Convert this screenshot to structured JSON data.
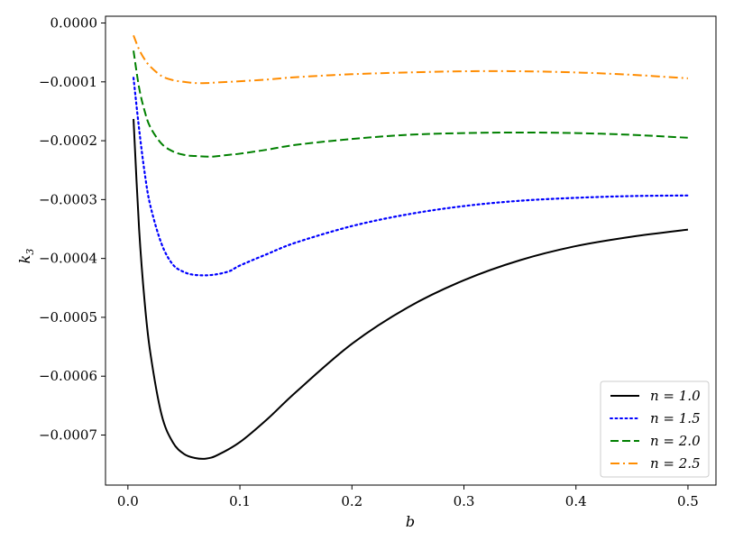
{
  "chart_data": {
    "type": "line",
    "xlabel": "b",
    "ylabel_main": "k",
    "ylabel_sub": "3",
    "xlim": [
      -0.02,
      0.525
    ],
    "ylim": [
      -0.000785,
      1.15e-05
    ],
    "xticks": [
      0.0,
      0.1,
      0.2,
      0.3,
      0.4,
      0.5
    ],
    "xtick_labels": [
      "0.0",
      "0.1",
      "0.2",
      "0.3",
      "0.4",
      "0.5"
    ],
    "yticks": [
      0.0,
      -0.0001,
      -0.0002,
      -0.0003,
      -0.0004,
      -0.0005,
      -0.0006,
      -0.0007
    ],
    "ytick_labels": [
      "0.0000",
      "−0.0001",
      "−0.0002",
      "−0.0003",
      "−0.0004",
      "−0.0005",
      "−0.0006",
      "−0.0007"
    ],
    "grid": false,
    "legend_position": "lower-right",
    "series": [
      {
        "name": "n = 1.0",
        "color": "#000000",
        "style": "solid",
        "points": [
          [
            0.005,
            -0.000163
          ],
          [
            0.01,
            -0.00035
          ],
          [
            0.015,
            -0.000475
          ],
          [
            0.02,
            -0.00056
          ],
          [
            0.03,
            -0.000665
          ],
          [
            0.04,
            -0.000712
          ],
          [
            0.05,
            -0.000732
          ],
          [
            0.06,
            -0.000739
          ],
          [
            0.07,
            -0.00074
          ],
          [
            0.08,
            -0.000734
          ],
          [
            0.1,
            -0.000712
          ],
          [
            0.125,
            -0.000672
          ],
          [
            0.15,
            -0.000627
          ],
          [
            0.2,
            -0.000545
          ],
          [
            0.25,
            -0.000483
          ],
          [
            0.3,
            -0.000437
          ],
          [
            0.35,
            -0.000403
          ],
          [
            0.4,
            -0.000379
          ],
          [
            0.45,
            -0.000363
          ],
          [
            0.5,
            -0.000351
          ]
        ]
      },
      {
        "name": "n = 1.5",
        "color": "#0000ff",
        "style": "dotted",
        "points": [
          [
            0.005,
            -9.3e-05
          ],
          [
            0.01,
            -0.00018
          ],
          [
            0.015,
            -0.000255
          ],
          [
            0.02,
            -0.00031
          ],
          [
            0.03,
            -0.000375
          ],
          [
            0.04,
            -0.00041
          ],
          [
            0.05,
            -0.000423
          ],
          [
            0.06,
            -0.000428
          ],
          [
            0.075,
            -0.000428
          ],
          [
            0.09,
            -0.000422
          ],
          [
            0.1,
            -0.000412
          ],
          [
            0.125,
            -0.000392
          ],
          [
            0.15,
            -0.000373
          ],
          [
            0.2,
            -0.000345
          ],
          [
            0.25,
            -0.000325
          ],
          [
            0.3,
            -0.000311
          ],
          [
            0.35,
            -0.000302
          ],
          [
            0.4,
            -0.000297
          ],
          [
            0.45,
            -0.000294
          ],
          [
            0.5,
            -0.000293
          ]
        ]
      },
      {
        "name": "n = 2.0",
        "color": "#008000",
        "style": "dashed",
        "points": [
          [
            0.005,
            -4.7e-05
          ],
          [
            0.01,
            -0.00011
          ],
          [
            0.015,
            -0.00015
          ],
          [
            0.02,
            -0.000177
          ],
          [
            0.03,
            -0.000205
          ],
          [
            0.04,
            -0.000218
          ],
          [
            0.05,
            -0.000224
          ],
          [
            0.06,
            -0.000226
          ],
          [
            0.075,
            -0.000227
          ],
          [
            0.09,
            -0.000224
          ],
          [
            0.1,
            -0.000222
          ],
          [
            0.125,
            -0.000215
          ],
          [
            0.15,
            -0.000207
          ],
          [
            0.2,
            -0.000197
          ],
          [
            0.25,
            -0.00019
          ],
          [
            0.3,
            -0.000187
          ],
          [
            0.35,
            -0.000186
          ],
          [
            0.4,
            -0.000187
          ],
          [
            0.45,
            -0.00019
          ],
          [
            0.5,
            -0.000195
          ]
        ]
      },
      {
        "name": "n = 2.5",
        "color": "#ff8c00",
        "style": "dashdot",
        "points": [
          [
            0.005,
            -2.1e-05
          ],
          [
            0.01,
            -4.5e-05
          ],
          [
            0.015,
            -6.2e-05
          ],
          [
            0.02,
            -7.4e-05
          ],
          [
            0.03,
            -9e-05
          ],
          [
            0.04,
            -9.7e-05
          ],
          [
            0.05,
            -0.0001
          ],
          [
            0.06,
            -0.000102
          ],
          [
            0.07,
            -0.000102
          ],
          [
            0.08,
            -0.000101
          ],
          [
            0.1,
            -9.9e-05
          ],
          [
            0.125,
            -9.6e-05
          ],
          [
            0.15,
            -9.2e-05
          ],
          [
            0.2,
            -8.7e-05
          ],
          [
            0.25,
            -8.4e-05
          ],
          [
            0.3,
            -8.2e-05
          ],
          [
            0.35,
            -8.2e-05
          ],
          [
            0.4,
            -8.4e-05
          ],
          [
            0.45,
            -8.8e-05
          ],
          [
            0.5,
            -9.4e-05
          ]
        ]
      }
    ]
  }
}
